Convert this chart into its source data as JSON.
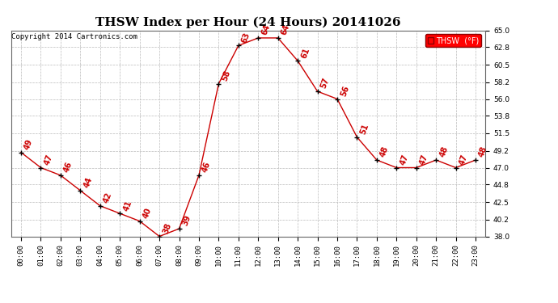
{
  "title": "THSW Index per Hour (24 Hours) 20141026",
  "copyright": "Copyright 2014 Cartronics.com",
  "legend_label": "THSW  (°F)",
  "hours": [
    "00:00",
    "01:00",
    "02:00",
    "03:00",
    "04:00",
    "05:00",
    "06:00",
    "07:00",
    "08:00",
    "09:00",
    "10:00",
    "11:00",
    "12:00",
    "13:00",
    "14:00",
    "15:00",
    "16:00",
    "17:00",
    "18:00",
    "19:00",
    "20:00",
    "21:00",
    "22:00",
    "23:00"
  ],
  "values": [
    49,
    47,
    46,
    44,
    42,
    41,
    40,
    38,
    39,
    46,
    58,
    63,
    64,
    64,
    61,
    57,
    56,
    51,
    48,
    47,
    47,
    48,
    47,
    48
  ],
  "line_color": "#cc0000",
  "marker_color": "#000000",
  "label_color": "#cc0000",
  "bg_color": "#ffffff",
  "grid_color": "#bbbbbb",
  "ylim": [
    38.0,
    65.0
  ],
  "yticks": [
    38.0,
    40.2,
    42.5,
    44.8,
    47.0,
    49.2,
    51.5,
    53.8,
    56.0,
    58.2,
    60.5,
    62.8,
    65.0
  ],
  "ytick_labels": [
    "38.0",
    "40.2",
    "42.5",
    "44.8",
    "47.0",
    "49.2",
    "51.5",
    "53.8",
    "56.0",
    "58.2",
    "60.5",
    "62.8",
    "65.0"
  ],
  "title_fontsize": 11,
  "label_fontsize": 7,
  "axis_fontsize": 6.5,
  "copyright_fontsize": 6.5,
  "legend_fontsize": 7
}
